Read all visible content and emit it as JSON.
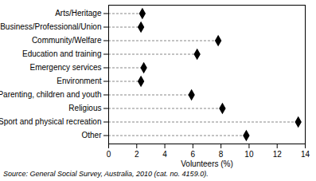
{
  "chart_data": {
    "type": "dot",
    "orientation": "horizontal",
    "categories": [
      "Arts/Heritage",
      "Business/Professional/Union",
      "Community/Welfare",
      "Education and training",
      "Emergency services",
      "Environment",
      "Parenting, children and youth",
      "Religious",
      "Sport and physical recreation",
      "Other"
    ],
    "values": [
      2.4,
      2.3,
      7.8,
      6.3,
      2.5,
      2.3,
      5.9,
      8.1,
      13.5,
      9.8
    ],
    "x_label": "Volunteers (%)",
    "xlim": [
      0,
      14
    ],
    "xticks": [
      0,
      2,
      4,
      6,
      8,
      10,
      12,
      14
    ],
    "color": "#000000",
    "marker": "diamond",
    "line_style": "dashed",
    "caption": "Source: General Social Survey, Australia, 2010 (cat. no. 4159.0)."
  }
}
